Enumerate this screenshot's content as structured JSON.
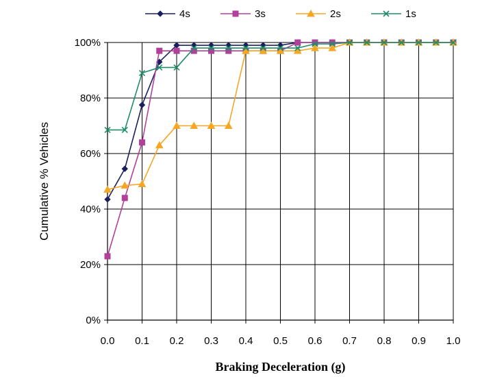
{
  "chart_data": {
    "type": "line",
    "title": "",
    "xlabel": "Braking Deceleration (g)",
    "ylabel": "Cumulative % Vehicles",
    "xlim": [
      0,
      1.0
    ],
    "ylim": [
      0,
      100
    ],
    "x_ticks": [
      "0.0",
      "0.1",
      "0.2",
      "0.3",
      "0.4",
      "0.5",
      "0.6",
      "0.7",
      "0.8",
      "0.9",
      "1.0"
    ],
    "y_ticks": [
      "0%",
      "20%",
      "40%",
      "60%",
      "80%",
      "100%"
    ],
    "grid": true,
    "legend_position": "top",
    "x": [
      0.0,
      0.05,
      0.1,
      0.15,
      0.2,
      0.25,
      0.3,
      0.35,
      0.4,
      0.45,
      0.5,
      0.55,
      0.6,
      0.65,
      0.7,
      0.75,
      0.8,
      0.85,
      0.9,
      0.95,
      1.0
    ],
    "series": [
      {
        "name": "4s",
        "color": "#1a1f5e",
        "marker": "diamond",
        "values": [
          43.5,
          54.5,
          77.5,
          93,
          99,
          99,
          99,
          99,
          99,
          99,
          99,
          100,
          100,
          100,
          100,
          100,
          100,
          100,
          100,
          100,
          100
        ]
      },
      {
        "name": "3s",
        "color": "#b0409a",
        "marker": "square",
        "values": [
          23,
          44,
          64,
          97,
          97,
          97,
          97,
          97,
          97,
          97,
          97,
          100,
          100,
          100,
          100,
          100,
          100,
          100,
          100,
          100,
          100
        ]
      },
      {
        "name": "2s",
        "color": "#f5a623",
        "marker": "triangle",
        "values": [
          47,
          48.5,
          49,
          63,
          70,
          70,
          70,
          70,
          97,
          97,
          97,
          97,
          98,
          98,
          100,
          100,
          100,
          100,
          100,
          100,
          100
        ]
      },
      {
        "name": "1s",
        "color": "#1e8c6a",
        "marker": "x",
        "values": [
          68.5,
          68.5,
          89,
          91,
          91,
          98,
          98,
          98,
          98,
          98,
          98,
          98,
          99.5,
          99.5,
          100,
          100,
          100,
          100,
          100,
          100,
          100
        ]
      }
    ]
  }
}
